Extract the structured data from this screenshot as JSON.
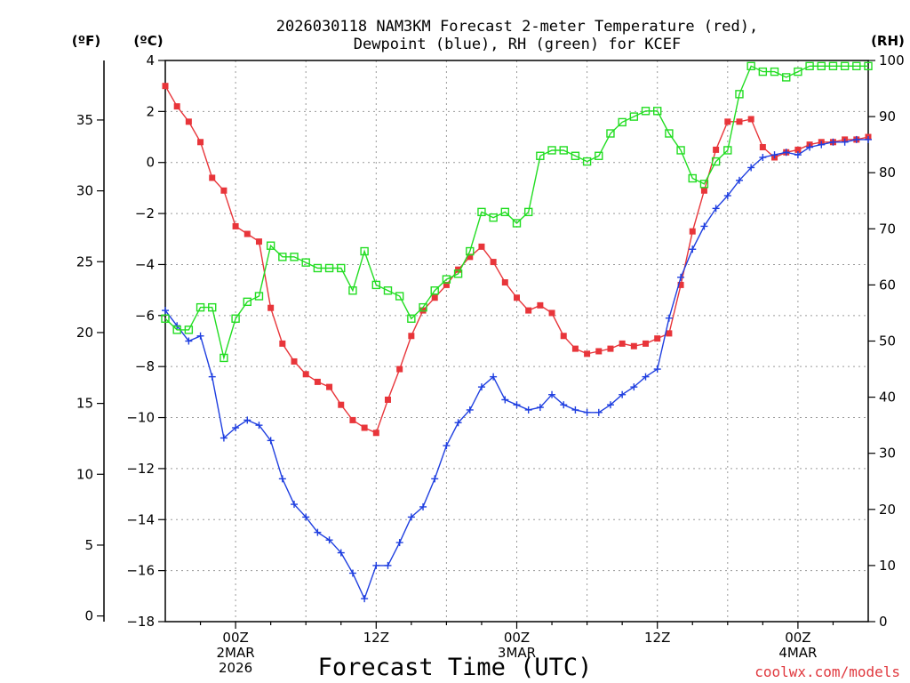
{
  "chart_data": {
    "type": "line",
    "title_line1": "2026030118 NAM3KM Forecast 2-meter Temperature (red),",
    "title_line2": "Dewpoint (blue), RH (green) for KCEF",
    "unit_left_f": "(ºF)",
    "unit_left_c": "(ºC)",
    "unit_right": "(RH)",
    "xlabel": "Forecast Time (UTC)",
    "credit": "coolwx.com/models",
    "x_range_hours": [
      18,
      78
    ],
    "ylim_c": [
      -18,
      4
    ],
    "ylim_rh": [
      0,
      100
    ],
    "yticks_c": [
      4,
      2,
      0,
      -2,
      -4,
      -6,
      -8,
      -10,
      -12,
      -14,
      -16,
      -18
    ],
    "yticks_f": [
      0,
      5,
      10,
      15,
      20,
      25,
      30,
      35
    ],
    "yticks_rh": [
      0,
      10,
      20,
      30,
      40,
      50,
      60,
      70,
      80,
      90,
      100
    ],
    "x_tick_hours": [
      24,
      36,
      48,
      60,
      72
    ],
    "x_tick_labels": [
      {
        "hour": 24,
        "line1": "00Z",
        "line2": "2MAR",
        "line3": "2026"
      },
      {
        "hour": 36,
        "line1": "12Z",
        "line2": "",
        "line3": ""
      },
      {
        "hour": 48,
        "line1": "00Z",
        "line2": "3MAR",
        "line3": ""
      },
      {
        "hour": 60,
        "line1": "12Z",
        "line2": "",
        "line3": ""
      },
      {
        "hour": 72,
        "line1": "00Z",
        "line2": "4MAR",
        "line3": ""
      }
    ],
    "series": [
      {
        "name": "Temperature",
        "unit": "C",
        "color": "#e8353a",
        "marker": "filled-square",
        "values": [
          3.0,
          2.2,
          1.6,
          0.8,
          -0.6,
          -1.1,
          -2.5,
          -2.8,
          -3.1,
          -5.7,
          -7.1,
          -7.8,
          -8.3,
          -8.6,
          -8.8,
          -9.5,
          -10.1,
          -10.4,
          -10.6,
          -9.3,
          -8.1,
          -6.8,
          -5.8,
          -5.3,
          -4.8,
          -4.2,
          -3.7,
          -3.3,
          -3.9,
          -4.7,
          -5.3,
          -5.8,
          -5.6,
          -5.9,
          -6.8,
          -7.3,
          -7.5,
          -7.4,
          -7.3,
          -7.1,
          -7.2,
          -7.1,
          -6.9,
          -6.7,
          -4.8,
          -2.7,
          -1.1,
          0.5,
          1.6,
          1.6,
          1.7,
          0.6,
          0.2,
          0.4,
          0.5,
          0.7,
          0.8,
          0.8,
          0.9,
          0.9,
          1.0
        ]
      },
      {
        "name": "Dewpoint",
        "unit": "C",
        "color": "#1f3fe0",
        "marker": "plus",
        "values": [
          -5.8,
          -6.4,
          -7.0,
          -6.8,
          -8.4,
          -10.8,
          -10.4,
          -10.1,
          -10.3,
          -10.9,
          -12.4,
          -13.4,
          -13.9,
          -14.5,
          -14.8,
          -15.3,
          -16.1,
          -17.1,
          -15.8,
          -15.8,
          -14.9,
          -13.9,
          -13.5,
          -12.4,
          -11.1,
          -10.2,
          -9.7,
          -8.8,
          -8.4,
          -9.3,
          -9.5,
          -9.7,
          -9.6,
          -9.1,
          -9.5,
          -9.7,
          -9.8,
          -9.8,
          -9.5,
          -9.1,
          -8.8,
          -8.4,
          -8.1,
          -6.1,
          -4.5,
          -3.4,
          -2.5,
          -1.8,
          -1.3,
          -0.7,
          -0.2,
          0.2,
          0.3,
          0.4,
          0.3,
          0.6,
          0.7,
          0.8,
          0.8,
          0.9,
          0.9
        ]
      },
      {
        "name": "RH",
        "unit": "%",
        "color": "#22dd22",
        "marker": "open-square",
        "values": [
          54,
          52,
          52,
          56,
          56,
          47,
          54,
          57,
          58,
          67,
          65,
          65,
          64,
          63,
          63,
          63,
          59,
          66,
          60,
          59,
          58,
          54,
          56,
          59,
          61,
          62,
          66,
          73,
          72,
          73,
          71,
          73,
          83,
          84,
          84,
          83,
          82,
          83,
          87,
          89,
          90,
          91,
          91,
          87,
          84,
          79,
          78,
          82,
          84,
          94,
          99,
          98,
          98,
          97,
          98,
          99,
          99,
          99,
          99,
          99,
          99
        ]
      }
    ]
  }
}
